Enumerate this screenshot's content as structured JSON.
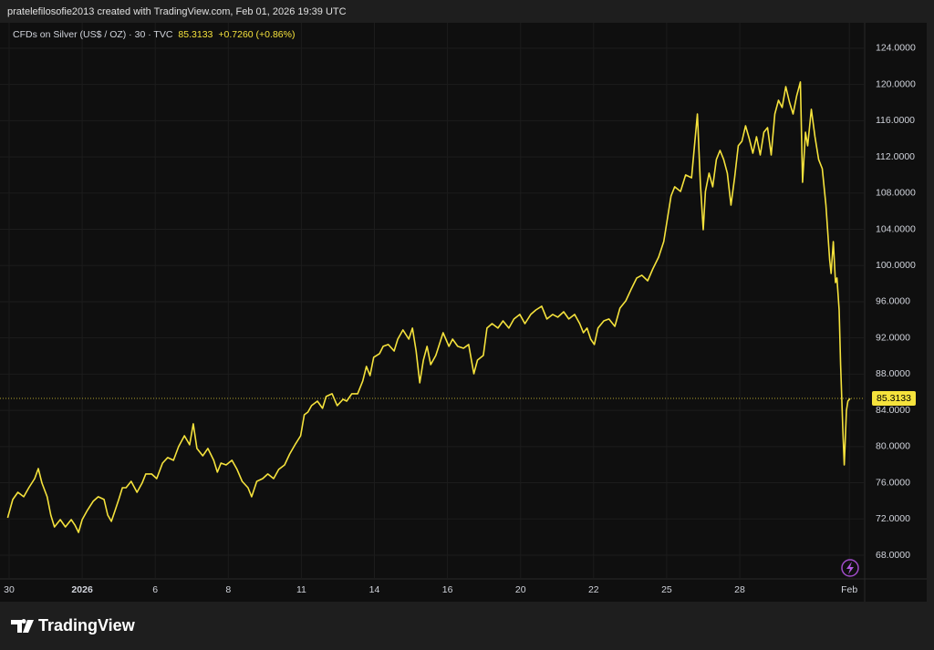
{
  "header": {
    "text": "pratelefilosofie2013 created with TradingView.com, Feb 01, 2026 19:39 UTC"
  },
  "footer": {
    "logo": "TradingView"
  },
  "chart_data": {
    "type": "line",
    "legend": {
      "symbol": "CFDs on Silver (US$ / OZ) · 30 · TVC",
      "last": "85.3133",
      "change": "+0.7260 (+0.86%)"
    },
    "color": "#f5e23c",
    "grid": true,
    "price_line": 85.3133,
    "xlim": [
      -0.025,
      11.71
    ],
    "ylim": [
      65.38,
      126.81
    ],
    "xticks": [
      {
        "value": 0,
        "label": "30"
      },
      {
        "value": 1,
        "label": "2026"
      },
      {
        "value": 2,
        "label": "6"
      },
      {
        "value": 3,
        "label": "8"
      },
      {
        "value": 4,
        "label": "11"
      },
      {
        "value": 5,
        "label": "14"
      },
      {
        "value": 6,
        "label": "16"
      },
      {
        "value": 7,
        "label": "20"
      },
      {
        "value": 8,
        "label": "22"
      },
      {
        "value": 9,
        "label": "25"
      },
      {
        "value": 10,
        "label": "28"
      },
      {
        "value": 11.5,
        "label": "Feb"
      }
    ],
    "yticks": [
      {
        "value": 68,
        "label": "68.0000"
      },
      {
        "value": 72,
        "label": "72.0000"
      },
      {
        "value": 76,
        "label": "76.0000"
      },
      {
        "value": 80,
        "label": "80.0000"
      },
      {
        "value": 84,
        "label": "84.0000"
      },
      {
        "value": 88,
        "label": "88.0000"
      },
      {
        "value": 92,
        "label": "92.0000"
      },
      {
        "value": 96,
        "label": "96.0000"
      },
      {
        "value": 100,
        "label": "100.0000"
      },
      {
        "value": 104,
        "label": "104.0000"
      },
      {
        "value": 108,
        "label": "108.0000"
      },
      {
        "value": 112,
        "label": "112.0000"
      },
      {
        "value": 116,
        "label": "116.0000"
      },
      {
        "value": 120,
        "label": "120.0000"
      },
      {
        "value": 124,
        "label": "124.0000"
      }
    ],
    "x": [
      -0.02,
      0.05,
      0.12,
      0.2,
      0.27,
      0.35,
      0.4,
      0.45,
      0.52,
      0.57,
      0.62,
      0.7,
      0.77,
      0.85,
      0.9,
      0.95,
      1.0,
      1.07,
      1.15,
      1.22,
      1.3,
      1.35,
      1.4,
      1.45,
      1.5,
      1.55,
      1.6,
      1.67,
      1.75,
      1.82,
      1.87,
      1.95,
      2.02,
      2.1,
      2.17,
      2.25,
      2.32,
      2.4,
      2.47,
      2.52,
      2.57,
      2.65,
      2.72,
      2.8,
      2.85,
      2.9,
      2.97,
      3.05,
      3.12,
      3.19,
      3.27,
      3.32,
      3.39,
      3.47,
      3.54,
      3.62,
      3.69,
      3.77,
      3.84,
      3.92,
      3.99,
      4.04,
      4.09,
      4.14,
      4.22,
      4.29,
      4.34,
      4.42,
      4.49,
      4.57,
      4.62,
      4.69,
      4.77,
      4.84,
      4.89,
      4.94,
      4.99,
      5.07,
      5.12,
      5.19,
      5.27,
      5.32,
      5.39,
      5.47,
      5.52,
      5.57,
      5.62,
      5.67,
      5.72,
      5.77,
      5.84,
      5.94,
      6.02,
      6.07,
      6.14,
      6.22,
      6.29,
      6.36,
      6.41,
      6.49,
      6.54,
      6.61,
      6.69,
      6.76,
      6.84,
      6.91,
      6.99,
      7.06,
      7.14,
      7.21,
      7.29,
      7.36,
      7.44,
      7.51,
      7.59,
      7.66,
      7.74,
      7.81,
      7.86,
      7.91,
      7.96,
      8.01,
      8.06,
      8.14,
      8.21,
      8.29,
      8.36,
      8.44,
      8.51,
      8.59,
      8.66,
      8.74,
      8.81,
      8.89,
      8.96,
      9.01,
      9.06,
      9.11,
      9.19,
      9.26,
      9.34,
      9.38,
      9.42,
      9.46,
      9.5,
      9.53,
      9.58,
      9.63,
      9.68,
      9.73,
      9.78,
      9.83,
      9.88,
      9.93,
      9.98,
      10.03,
      10.08,
      10.13,
      10.18,
      10.23,
      10.28,
      10.33,
      10.38,
      10.43,
      10.48,
      10.53,
      10.58,
      10.63,
      10.68,
      10.73,
      10.78,
      10.83,
      10.86,
      10.9,
      10.93,
      10.98,
      11.03,
      11.08,
      11.13,
      11.18,
      11.23,
      11.25,
      11.28,
      11.31,
      11.33,
      11.36,
      11.38,
      11.41,
      11.43,
      11.46,
      11.48,
      11.51
    ],
    "values": [
      72.13,
      74.15,
      74.95,
      74.45,
      75.45,
      76.46,
      77.57,
      75.96,
      74.45,
      72.43,
      71.12,
      71.93,
      71.12,
      71.93,
      71.33,
      70.52,
      71.93,
      72.94,
      73.95,
      74.45,
      74.15,
      72.43,
      71.73,
      72.94,
      74.15,
      75.45,
      75.45,
      76.16,
      74.95,
      75.96,
      76.97,
      76.97,
      76.46,
      78.17,
      78.78,
      78.48,
      79.99,
      81.19,
      80.19,
      82.51,
      79.79,
      78.98,
      79.79,
      78.48,
      77.17,
      78.17,
      77.97,
      78.48,
      77.47,
      76.16,
      75.45,
      74.45,
      76.16,
      76.46,
      76.97,
      76.46,
      77.47,
      77.97,
      79.18,
      80.29,
      81.19,
      83.51,
      83.81,
      84.52,
      85.02,
      84.22,
      85.53,
      85.83,
      84.52,
      85.22,
      85.02,
      85.83,
      85.83,
      87.24,
      88.85,
      87.84,
      89.86,
      90.26,
      91.07,
      91.27,
      90.56,
      91.87,
      92.88,
      91.87,
      93.08,
      90.56,
      87.04,
      89.55,
      91.07,
      89.05,
      90.06,
      92.57,
      91.07,
      91.87,
      91.07,
      90.86,
      91.27,
      88.04,
      89.55,
      90.06,
      93.08,
      93.58,
      93.08,
      93.88,
      93.08,
      94.09,
      94.59,
      93.58,
      94.59,
      95.09,
      95.5,
      94.09,
      94.59,
      94.29,
      94.89,
      94.09,
      94.59,
      93.58,
      92.57,
      93.08,
      91.87,
      91.27,
      93.08,
      93.88,
      94.09,
      93.28,
      95.29,
      96.1,
      97.31,
      98.62,
      98.92,
      98.31,
      99.62,
      100.93,
      102.64,
      105.16,
      107.68,
      108.69,
      108.18,
      110.0,
      109.69,
      113.22,
      116.74,
      109.19,
      103.95,
      108.18,
      110.2,
      108.69,
      111.71,
      112.71,
      111.71,
      110.2,
      106.67,
      109.69,
      113.22,
      113.72,
      115.43,
      114.02,
      112.41,
      114.22,
      112.21,
      114.73,
      115.23,
      112.21,
      116.74,
      118.25,
      117.45,
      119.76,
      118.05,
      116.74,
      118.76,
      120.27,
      109.19,
      114.73,
      113.22,
      117.25,
      114.22,
      111.71,
      110.7,
      106.67,
      100.63,
      99.12,
      102.64,
      98.11,
      98.62,
      95.09,
      89.05,
      82.0,
      77.97,
      83.97,
      85.02,
      85.31
    ]
  }
}
